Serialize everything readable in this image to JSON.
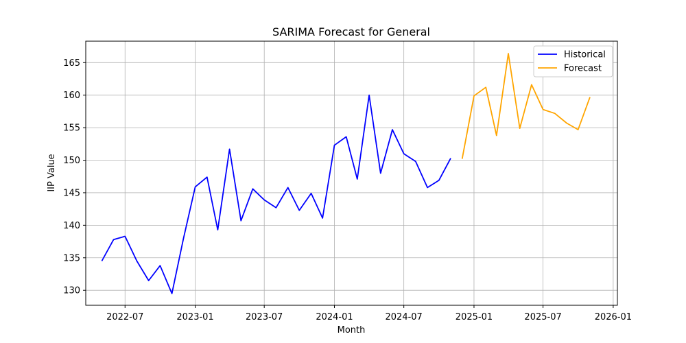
{
  "chart_data": {
    "type": "line",
    "title": "SARIMA Forecast for General",
    "xlabel": "Month",
    "ylabel": "IIP Value",
    "xlim": [
      "2022-03-20",
      "2026-01-12"
    ],
    "ylim": [
      127.7,
      168.3
    ],
    "x_ticks": [
      "2022-07",
      "2023-01",
      "2023-07",
      "2024-01",
      "2024-07",
      "2025-01",
      "2025-07",
      "2026-01"
    ],
    "y_ticks": [
      130,
      135,
      140,
      145,
      150,
      155,
      160,
      165
    ],
    "grid": true,
    "legend_position": "top-right",
    "series": [
      {
        "name": "Historical",
        "color": "#0000ff",
        "x": [
          "2022-05",
          "2022-06",
          "2022-07",
          "2022-08",
          "2022-09",
          "2022-10",
          "2022-11",
          "2022-12",
          "2023-01",
          "2023-02",
          "2023-03",
          "2023-04",
          "2023-05",
          "2023-06",
          "2023-07",
          "2023-08",
          "2023-09",
          "2023-10",
          "2023-11",
          "2023-12",
          "2024-01",
          "2024-02",
          "2024-03",
          "2024-04",
          "2024-05",
          "2024-06",
          "2024-07",
          "2024-08",
          "2024-09",
          "2024-10",
          "2024-11"
        ],
        "values": [
          134.5,
          137.8,
          138.3,
          134.5,
          131.5,
          133.8,
          129.5,
          137.9,
          145.9,
          147.4,
          139.3,
          151.7,
          140.7,
          145.6,
          143.9,
          142.7,
          145.8,
          142.3,
          144.9,
          141.1,
          152.3,
          153.6,
          147.1,
          160.0,
          148.0,
          154.7,
          151.0,
          149.8,
          145.8,
          146.9,
          150.3
        ]
      },
      {
        "name": "Forecast",
        "color": "#ffa500",
        "x": [
          "2024-12",
          "2025-01",
          "2025-02",
          "2025-03",
          "2025-04",
          "2025-05",
          "2025-06",
          "2025-07",
          "2025-08",
          "2025-09",
          "2025-10",
          "2025-11"
        ],
        "values": [
          150.2,
          159.9,
          161.2,
          153.8,
          166.4,
          154.9,
          161.6,
          157.8,
          157.2,
          155.7,
          154.7,
          159.7
        ]
      }
    ]
  }
}
